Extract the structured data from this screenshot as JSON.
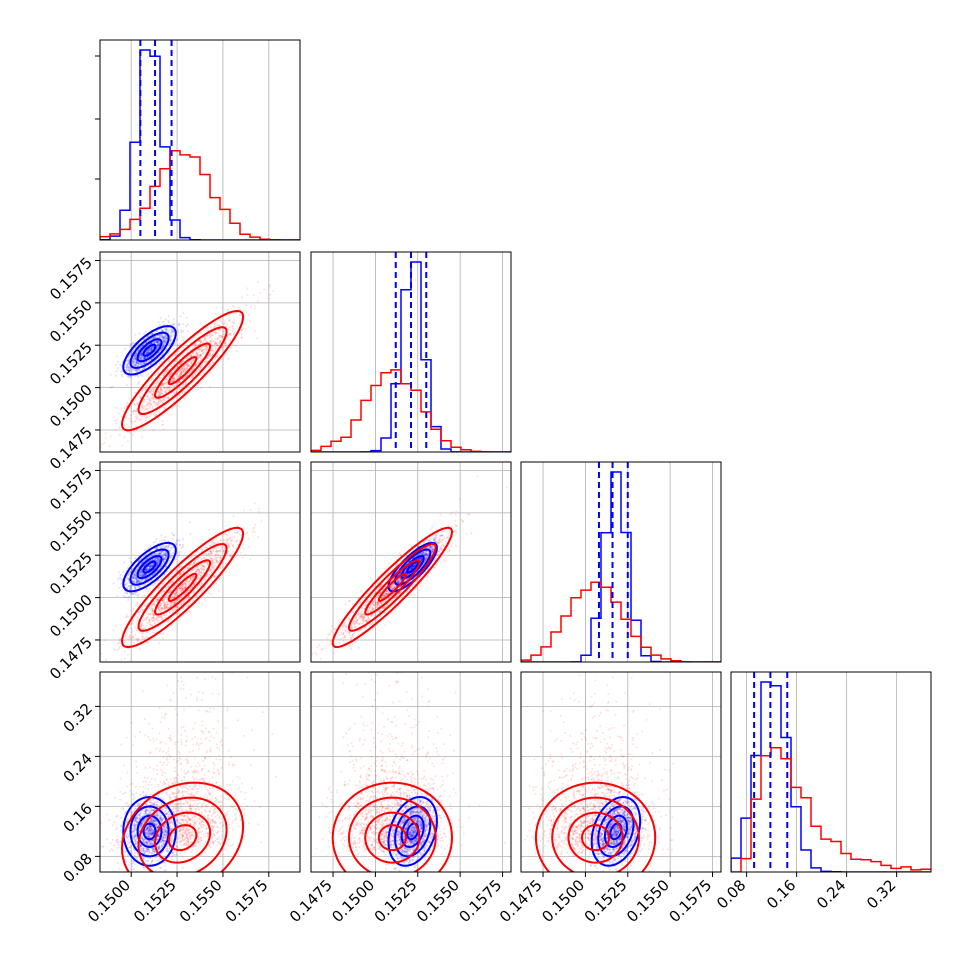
{
  "chart_data": {
    "type": "corner",
    "title": "",
    "n_params": 4,
    "grid": true,
    "colors": {
      "blue": "#0000ff",
      "red": "#ff0000"
    },
    "axes": [
      {
        "range": [
          0.1483,
          0.1592
        ],
        "ticks": [
          0.15,
          0.1525,
          0.155,
          0.1575
        ],
        "tick_labels": [
          "0.1500",
          "0.1525",
          "0.1550",
          "0.1575"
        ]
      },
      {
        "range": [
          0.1462,
          0.158
        ],
        "ticks": [
          0.1475,
          0.15,
          0.1525,
          0.155,
          0.1575
        ],
        "tick_labels": [
          "0.1475",
          "0.1500",
          "0.1525",
          "0.1550",
          "0.1575"
        ]
      },
      {
        "range": [
          0.1462,
          0.158
        ],
        "ticks": [
          0.1475,
          0.15,
          0.1525,
          0.155,
          0.1575
        ],
        "tick_labels": [
          "0.1475",
          "0.1500",
          "0.1525",
          "0.1550",
          "0.1575"
        ]
      },
      {
        "range": [
          0.055,
          0.375
        ],
        "ticks": [
          0.08,
          0.16,
          0.24,
          0.32
        ],
        "tick_labels": [
          "0.08",
          "0.16",
          "0.24",
          "0.32"
        ]
      }
    ],
    "series": [
      {
        "color": "#0000ff",
        "means": [
          0.151,
          0.1522,
          0.1518,
          0.12
        ],
        "sigmas": [
          0.00065,
          0.00065,
          0.00065,
          0.025
        ],
        "quantiles": [
          [
            0.1505,
            0.1513,
            0.1522
          ],
          [
            0.1512,
            0.1521,
            0.153
          ],
          [
            0.1508,
            0.1516,
            0.1525
          ],
          [
            0.092,
            0.118,
            0.145
          ]
        ]
      },
      {
        "color": "#ff0000",
        "means": [
          0.1528,
          0.151,
          0.1506,
          0.15
        ],
        "sigmas": [
          0.0015,
          0.0016,
          0.0016,
          0.055
        ],
        "quantiles": []
      }
    ],
    "correlations": {
      "blue": {
        "1-0": 0.7,
        "2-0": 0.7,
        "2-1": 0.8,
        "3-0": 0.0,
        "3-1": 0.3,
        "3-2": 0.3
      },
      "red": {
        "1-0": 0.9,
        "2-0": 0.9,
        "2-1": 0.93,
        "3-0": 0.2,
        "3-1": 0.0,
        "3-2": 0.0
      }
    }
  }
}
